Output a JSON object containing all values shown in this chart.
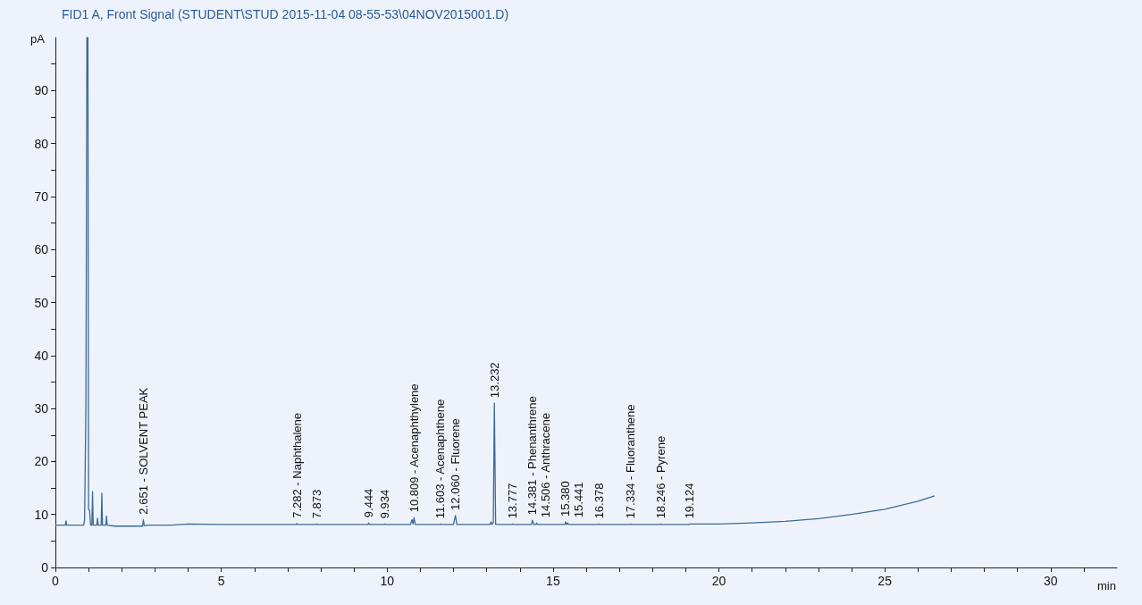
{
  "chart_data": {
    "type": "line",
    "title": "FID1 A, Front Signal (STUDENT\\STUD 2015-11-04 08-55-53\\04NOV2015001.D)",
    "xlabel": "min",
    "ylabel": "pA",
    "color": "#3b6a96",
    "marker": "none",
    "grid": false,
    "x": [
      0,
      0.3,
      0.32,
      0.34,
      0.85,
      0.88,
      0.92,
      0.95,
      0.98,
      1.0,
      1.03,
      1.06,
      1.1,
      1.12,
      1.14,
      1.25,
      1.27,
      1.29,
      1.38,
      1.4,
      1.42,
      1.52,
      1.54,
      1.56,
      1.8,
      2.63,
      2.651,
      2.68,
      2.8,
      3.5,
      4,
      5,
      7.26,
      7.282,
      7.3,
      7.85,
      7.873,
      7.9,
      9.42,
      9.444,
      9.47,
      9.91,
      9.934,
      9.96,
      10.7,
      10.75,
      10.78,
      10.809,
      10.85,
      11.58,
      11.603,
      11.63,
      12.0,
      12.03,
      12.06,
      12.1,
      13.1,
      13.13,
      13.16,
      13.2,
      13.232,
      13.27,
      13.75,
      13.777,
      13.8,
      14.35,
      14.381,
      14.42,
      14.48,
      14.506,
      14.53,
      15.36,
      15.38,
      15.41,
      15.441,
      15.47,
      16.35,
      16.378,
      16.4,
      17.31,
      17.334,
      17.36,
      18.22,
      18.246,
      18.27,
      19.1,
      19.124,
      20,
      21,
      22,
      23,
      24,
      25,
      26,
      26.5
    ],
    "values": [
      8,
      8,
      8.8,
      8,
      8,
      9,
      31,
      100,
      100,
      11,
      10.8,
      8,
      8,
      14.3,
      8,
      8,
      9.3,
      8,
      8,
      14,
      8,
      8,
      9.7,
      8,
      7.8,
      7.8,
      9,
      7.9,
      8,
      8,
      8.2,
      8.1,
      8.1,
      8.3,
      8.1,
      8.1,
      8.2,
      8.1,
      8.1,
      8.4,
      8.1,
      8.1,
      8.2,
      8.1,
      8.1,
      9,
      8.2,
      9.4,
      8.1,
      8.1,
      8.2,
      8.1,
      8.1,
      9,
      9.8,
      8.1,
      8.1,
      8.6,
      8.1,
      8.5,
      31,
      8.1,
      8.1,
      8.2,
      8.1,
      8.1,
      8.9,
      8.1,
      8.1,
      8.4,
      8.1,
      8.1,
      8.6,
      8.1,
      8.4,
      8.1,
      8.1,
      8.2,
      8.1,
      8.1,
      8.2,
      8.1,
      8.1,
      8.2,
      8.1,
      8.1,
      8.2,
      8.2,
      8.4,
      8.7,
      9.2,
      10,
      11,
      12.5,
      13.5
    ],
    "xlim": [
      0,
      32
    ],
    "xticks": [
      0,
      {
        "value": 1,
        "label": null
      },
      {
        "value": 2,
        "label": null
      },
      {
        "value": 3,
        "label": null
      },
      {
        "value": 4,
        "label": null
      },
      5,
      {
        "value": 6,
        "label": null
      },
      {
        "value": 7,
        "label": null
      },
      {
        "value": 8,
        "label": null
      },
      {
        "value": 9,
        "label": null
      },
      10,
      {
        "value": 11,
        "label": null
      },
      {
        "value": 12,
        "label": null
      },
      {
        "value": 13,
        "label": null
      },
      {
        "value": 14,
        "label": null
      },
      15,
      {
        "value": 16,
        "label": null
      },
      {
        "value": 17,
        "label": null
      },
      {
        "value": 18,
        "label": null
      },
      {
        "value": 19,
        "label": null
      },
      20,
      {
        "value": 21,
        "label": null
      },
      {
        "value": 22,
        "label": null
      },
      {
        "value": 23,
        "label": null
      },
      {
        "value": 24,
        "label": null
      },
      25,
      {
        "value": 26,
        "label": null
      },
      {
        "value": 27,
        "label": null
      },
      {
        "value": 28,
        "label": null
      },
      {
        "value": 29,
        "label": null
      },
      30,
      {
        "value": 31,
        "label": null
      }
    ],
    "ylim": [
      0,
      100
    ],
    "yticks": [
      0,
      {
        "value": 5,
        "label": null
      },
      10,
      {
        "value": 15,
        "label": null
      },
      20,
      {
        "value": 25,
        "label": null
      },
      30,
      {
        "value": 35,
        "label": null
      },
      40,
      {
        "value": 45,
        "label": null
      },
      50,
      {
        "value": 55,
        "label": null
      },
      60,
      {
        "value": 65,
        "label": null
      },
      70,
      {
        "value": 75,
        "label": null
      },
      80,
      {
        "value": 85,
        "label": null
      },
      90,
      {
        "value": 95,
        "label": null
      }
    ],
    "annotations": [
      {
        "text": "2.651 - SOLVENT PEAK",
        "x": 2.651,
        "y": 9
      },
      {
        "text": "7.282 - Naphthalene",
        "x": 7.282,
        "y": 8.3
      },
      {
        "text": "7.873",
        "x": 7.873,
        "y": 8.2
      },
      {
        "text": "9.444",
        "x": 9.444,
        "y": 8.4
      },
      {
        "text": "9.934",
        "x": 9.934,
        "y": 8.2
      },
      {
        "text": "10.809 - Acenaphthylene",
        "x": 10.809,
        "y": 9.4
      },
      {
        "text": "11.603 - Acenaphthene",
        "x": 11.603,
        "y": 8.2
      },
      {
        "text": "12.060 - Fluorene",
        "x": 12.06,
        "y": 9.8
      },
      {
        "text": "13.232",
        "x": 13.232,
        "y": 31
      },
      {
        "text": "13.777",
        "x": 13.777,
        "y": 8.2
      },
      {
        "text": "14.381 - Phenanthrene",
        "x": 14.381,
        "y": 8.9
      },
      {
        "text": "14.506 - Anthracene",
        "x": 14.506,
        "y": 8.4
      },
      {
        "text": "15.380",
        "x": 15.38,
        "y": 8.6
      },
      {
        "text": "15.441",
        "x": 15.441,
        "y": 8.4
      },
      {
        "text": "16.378",
        "x": 16.378,
        "y": 8.2
      },
      {
        "text": "17.334 - Fluoranthene",
        "x": 17.334,
        "y": 8.2
      },
      {
        "text": "18.246 - Pyrene",
        "x": 18.246,
        "y": 8.2
      },
      {
        "text": "19.124",
        "x": 19.124,
        "y": 8.2
      }
    ]
  }
}
